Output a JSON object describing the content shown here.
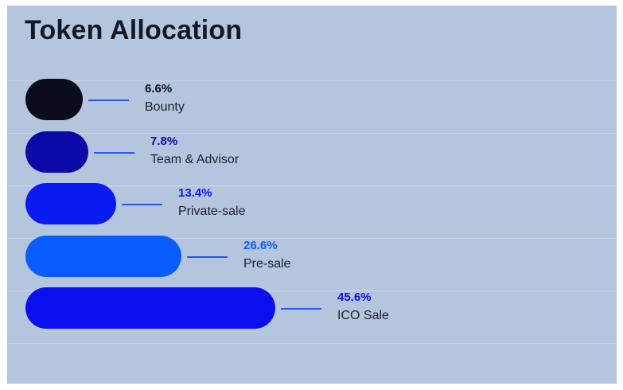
{
  "title": "Token Allocation",
  "chart_data": {
    "type": "bar",
    "orientation": "horizontal",
    "title": "Token Allocation",
    "categories": [
      "Bounty",
      "Team & Advisor",
      "Private-sale",
      "Pre-sale",
      "ICO Sale"
    ],
    "values": [
      6.6,
      7.8,
      13.4,
      26.6,
      45.6
    ],
    "data_labels": [
      "6.6%",
      "7.8%",
      "13.4%",
      "26.6%",
      "45.6%"
    ],
    "colors": [
      "#0a0c1a",
      "#0a0aa6",
      "#0a1af2",
      "#0a5cff",
      "#0a0ff0"
    ],
    "label_colors": [
      "#0a0c1a",
      "#0a0aa6",
      "#0a1af2",
      "#0a5cff",
      "#0a0ff0"
    ],
    "unit": "%",
    "grid": true,
    "legend": "none"
  }
}
